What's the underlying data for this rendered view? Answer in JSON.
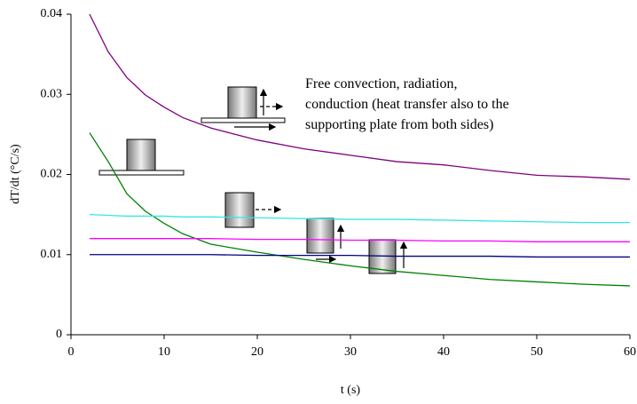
{
  "chart_data": {
    "type": "line",
    "y_label": "dT/dt (°C/s)",
    "x_label": "t (s)",
    "annotation": [
      "Free convection, radiation,",
      "conduction (heat transfer also to the",
      "supporting plate from both sides)"
    ],
    "x": [
      2,
      4,
      6,
      8,
      10,
      12,
      15,
      20,
      25,
      30,
      35,
      40,
      45,
      50,
      55,
      60
    ],
    "series": [
      {
        "color": "#800080",
        "values": [
          0.04,
          0.0353,
          0.0321,
          0.0299,
          0.0284,
          0.0271,
          0.0258,
          0.0243,
          0.0232,
          0.0224,
          0.0216,
          0.0212,
          0.0205,
          0.0199,
          0.0197,
          0.0194
        ]
      },
      {
        "color": "#008000",
        "values": [
          0.0252,
          0.0216,
          0.0176,
          0.0154,
          0.0139,
          0.0126,
          0.0113,
          0.0103,
          0.0094,
          0.0086,
          0.0079,
          0.0074,
          0.0069,
          0.0066,
          0.0063,
          0.0061
        ]
      },
      {
        "color": "#33e6e6",
        "values": [
          0.015,
          0.0149,
          0.0148,
          0.0148,
          0.0148,
          0.0147,
          0.0147,
          0.0146,
          0.0145,
          0.0144,
          0.0144,
          0.0143,
          0.0142,
          0.0141,
          0.014,
          0.014
        ]
      },
      {
        "color": "#ff00ff",
        "values": [
          0.012,
          0.012,
          0.012,
          0.012,
          0.012,
          0.012,
          0.012,
          0.0119,
          0.0119,
          0.0118,
          0.0118,
          0.0117,
          0.0117,
          0.0116,
          0.0116,
          0.0116
        ]
      },
      {
        "color": "#000080",
        "values": [
          0.01,
          0.01,
          0.01,
          0.01,
          0.01,
          0.01,
          0.01,
          0.0099,
          0.0099,
          0.0099,
          0.0098,
          0.0098,
          0.0098,
          0.0097,
          0.0097,
          0.0097
        ]
      }
    ],
    "xlim": [
      0,
      60
    ],
    "xticks": [
      0,
      10,
      20,
      30,
      40,
      50,
      60
    ],
    "ylim": [
      0,
      0.04
    ],
    "yticks": [
      0,
      0.01,
      0.02,
      0.03,
      0.04
    ],
    "grid": false
  }
}
